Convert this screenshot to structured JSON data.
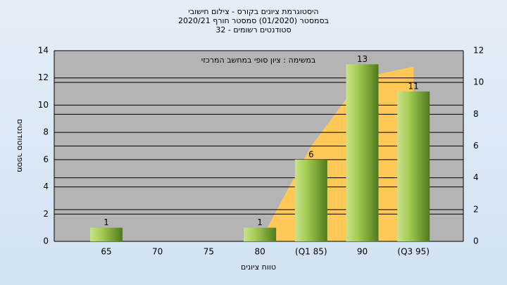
{
  "chart_data": {
    "type": "bar",
    "title": "היסטוגרמת ציונים בקורס - צילום חישובי",
    "subtitle": "בסמסטר  (01/2020)  סמסטר חורף  2020/21",
    "subtitle2": "סטודנטים רשומים - 32",
    "annotation": "במשימה : ציון סופי במחשב המרכזי",
    "x_label": "טווח ציונים",
    "y_label": "מספר סטודנטים",
    "categories": [
      "65",
      "70",
      "75",
      "80",
      "(Q1 85)",
      "90",
      "(Q3 95)"
    ],
    "series": [
      {
        "color": "#8dbb3c",
        "values": [
          1,
          0,
          0,
          1,
          6,
          13,
          11
        ]
      },
      {
        "color": "#ffc857",
        "axis": "y2",
        "values": [
          null,
          null,
          null,
          0,
          6,
          10.3,
          11
        ]
      }
    ],
    "ylim": [
      0,
      14
    ],
    "yticks": [
      0,
      2,
      4,
      6,
      8,
      10,
      12,
      14
    ],
    "y2lim": [
      0,
      12
    ],
    "y2ticks": [
      0,
      2,
      4,
      6,
      8,
      10,
      12
    ],
    "grid": true
  }
}
